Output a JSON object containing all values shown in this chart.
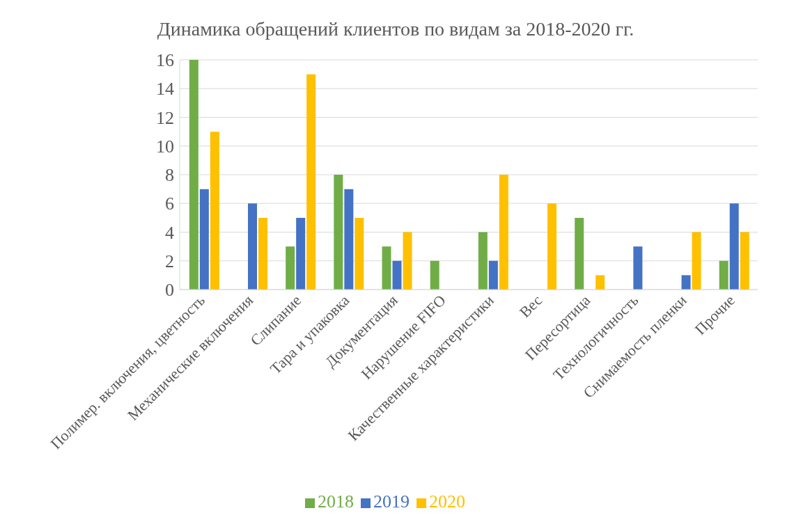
{
  "chart_data": {
    "type": "bar",
    "title": "Динамика обращений клиентов по видам за 2018-2020 гг.",
    "categories": [
      "Полимер. включения, цветность",
      "Механические включения",
      "Слипание",
      "Тара и упаковка",
      "Документация",
      "Нарушение FIFO",
      "Качественные характеристики",
      "Вес",
      "Пересортица",
      "Технологичность",
      "Снимаемость пленки",
      "Прочие"
    ],
    "series": [
      {
        "name": "2018",
        "color": "#70ad47",
        "values": [
          16,
          0,
          3,
          8,
          3,
          2,
          4,
          0,
          5,
          0,
          0,
          2
        ]
      },
      {
        "name": "2019",
        "color": "#4472c4",
        "values": [
          7,
          6,
          5,
          7,
          2,
          0,
          2,
          0,
          0,
          3,
          1,
          6
        ]
      },
      {
        "name": "2020",
        "color": "#ffc000",
        "values": [
          11,
          5,
          15,
          5,
          4,
          0,
          8,
          6,
          1,
          0,
          4,
          4
        ]
      }
    ],
    "ylim": [
      0,
      16
    ],
    "yticks": [
      0,
      2,
      4,
      6,
      8,
      10,
      12,
      14,
      16
    ],
    "grid": "y",
    "legend": "bottom"
  }
}
